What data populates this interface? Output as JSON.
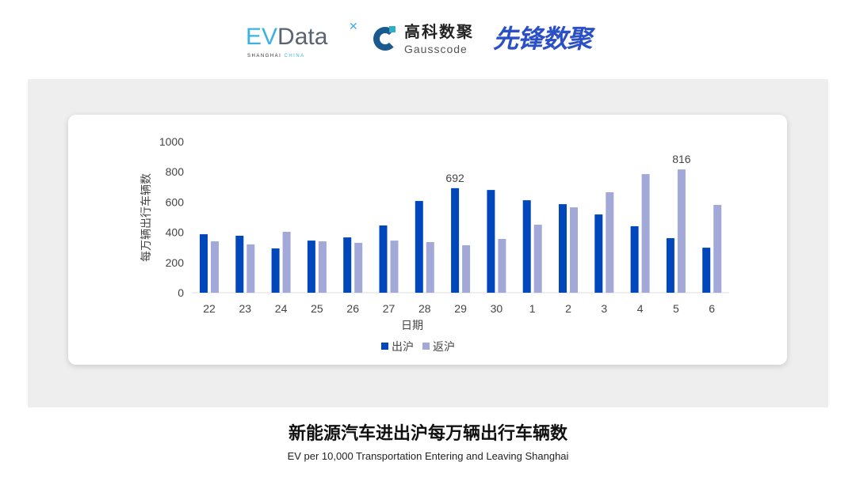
{
  "logos": {
    "evdata": "EVData",
    "evdata_sub": "SHANGHAI CHINA",
    "gauss_cn": "高科数聚",
    "gauss_en": "Gausscode",
    "xianfeng": "先锋数聚"
  },
  "chart_data": {
    "type": "bar",
    "categories": [
      "22",
      "23",
      "24",
      "25",
      "26",
      "27",
      "28",
      "29",
      "30",
      "1",
      "2",
      "3",
      "4",
      "5",
      "6"
    ],
    "series": [
      {
        "name": "出沪",
        "color": "#0047bb",
        "values": [
          387,
          377,
          293,
          345,
          366,
          445,
          607,
          692,
          680,
          612,
          586,
          518,
          440,
          361,
          298
        ]
      },
      {
        "name": "返沪",
        "color": "#a2a9d8",
        "values": [
          340,
          320,
          403,
          340,
          330,
          345,
          335,
          314,
          356,
          450,
          565,
          665,
          785,
          816,
          581
        ]
      }
    ],
    "data_labels": [
      {
        "series": 0,
        "category": "29",
        "text": "692"
      },
      {
        "series": 1,
        "category": "5",
        "text": "816"
      }
    ],
    "xlabel": "日期",
    "ylabel": "每万辆出行车辆数",
    "ylim": [
      0,
      1000
    ],
    "yticks": [
      "0",
      "200",
      "400",
      "600",
      "800",
      "1000"
    ],
    "grid": false,
    "legend": "bottom"
  },
  "caption": {
    "title": "新能源汽车进出沪每万辆出行车辆数",
    "subtitle": "EV per 10,000 Transportation Entering and Leaving Shanghai"
  }
}
